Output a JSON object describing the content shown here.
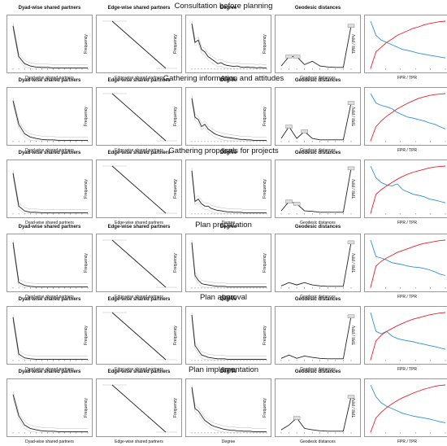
{
  "panel_titles": {
    "dsp": "Dyad-wise shared partners",
    "esp": "Edge-wise shared partners",
    "deg": "Degree",
    "geo": "Geodesic distances"
  },
  "axis_labels": {
    "dsp_x": "Dyad-wise shared partners",
    "esp_x": "Edge-wise shared partners",
    "deg_x": "Degree",
    "geo_x": "Geodesic distances",
    "roc_x": "FPR / TPR",
    "frequency": "Frequency",
    "roc_y": "TPR / PPV"
  },
  "colors": {
    "line": "#222222",
    "band": "#bbbbbb",
    "roc": "#e8202a",
    "pr": "#2b8fd6"
  },
  "chart_data": [
    {
      "type": "line",
      "title": "Consultation before planning",
      "dsp": [
        0.9,
        0.25,
        0.1,
        0.05,
        0.03,
        0.02,
        0.02,
        0.01,
        0.01,
        0.01,
        0.01,
        0.01,
        0.01,
        0.01
      ],
      "esp": [
        1.0,
        0.0
      ],
      "degree": [
        0.95,
        0.55,
        0.6,
        0.4,
        0.35,
        0.25,
        0.2,
        0.15,
        0.1,
        0.12,
        0.08,
        0.06,
        0.05,
        0.04,
        0.05,
        0.03,
        0.02,
        0.03,
        0.02,
        0.02,
        0.01,
        0.02,
        0.01,
        0.01
      ],
      "geodesic": [
        0.05,
        0.25,
        0.25,
        0.08,
        0.15,
        0.05,
        0.03,
        0.02,
        0.02,
        0.9
      ],
      "roc": [
        0.0,
        0.35,
        0.45,
        0.55,
        0.62,
        0.7,
        0.75,
        0.8,
        0.85,
        0.88,
        0.92,
        0.95,
        0.97,
        0.99,
        1.0
      ],
      "pr": [
        1.0,
        0.7,
        0.6,
        0.55,
        0.5,
        0.45,
        0.4,
        0.38,
        0.35,
        0.32,
        0.3,
        0.28,
        0.26,
        0.24,
        0.22
      ]
    },
    {
      "type": "line",
      "title": "Gathering information and attitudes",
      "dsp": [
        0.85,
        0.35,
        0.15,
        0.08,
        0.05,
        0.03,
        0.02,
        0.02,
        0.01,
        0.01,
        0.01,
        0.01,
        0.01,
        0.01
      ],
      "esp": [
        1.0,
        0.0
      ],
      "degree": [
        0.9,
        0.5,
        0.45,
        0.3,
        0.35,
        0.25,
        0.2,
        0.15,
        0.12,
        0.1,
        0.08,
        0.07,
        0.06,
        0.05,
        0.04,
        0.03,
        0.03,
        0.02,
        0.02,
        0.01,
        0.01,
        0.01,
        0.01,
        0.01
      ],
      "geodesic": [
        0.05,
        0.3,
        0.05,
        0.2,
        0.05,
        0.02,
        0.02,
        0.02,
        0.02,
        0.8
      ],
      "roc": [
        0.0,
        0.3,
        0.42,
        0.52,
        0.6,
        0.68,
        0.74,
        0.8,
        0.85,
        0.9,
        0.93,
        0.96,
        0.98,
        0.99,
        1.0
      ],
      "pr": [
        1.0,
        0.8,
        0.75,
        0.72,
        0.68,
        0.6,
        0.55,
        0.5,
        0.48,
        0.45,
        0.42,
        0.38,
        0.35,
        0.3,
        0.25
      ]
    },
    {
      "type": "line",
      "title": "Gathering proposals for projects",
      "dsp": [
        0.85,
        0.15,
        0.05,
        0.02,
        0.02,
        0.01,
        0.01,
        0.01,
        0.01,
        0.01,
        0.01,
        0.01,
        0.01,
        0.01
      ],
      "esp": [
        1.0,
        0.0
      ],
      "degree": [
        0.9,
        0.25,
        0.3,
        0.2,
        0.15,
        0.15,
        0.1,
        0.08,
        0.06,
        0.05,
        0.04,
        0.03,
        0.03,
        0.02,
        0.02,
        0.02,
        0.01,
        0.01,
        0.01,
        0.01,
        0.01,
        0.01,
        0.01,
        0.01
      ],
      "geodesic": [
        0.05,
        0.25,
        0.2,
        0.05,
        0.04,
        0.02,
        0.02,
        0.02,
        0.02,
        0.95
      ],
      "roc": [
        0.0,
        0.4,
        0.5,
        0.58,
        0.65,
        0.72,
        0.78,
        0.83,
        0.87,
        0.9,
        0.93,
        0.96,
        0.98,
        0.99,
        1.0
      ],
      "pr": [
        1.0,
        0.75,
        0.65,
        0.6,
        0.58,
        0.62,
        0.5,
        0.45,
        0.4,
        0.38,
        0.35,
        0.3,
        0.28,
        0.25,
        0.22
      ]
    },
    {
      "type": "line",
      "title": "Plan preparation",
      "dsp": [
        0.95,
        0.1,
        0.04,
        0.02,
        0.01,
        0.01,
        0.01,
        0.01,
        0.01,
        0.01,
        0.01,
        0.01,
        0.01,
        0.01
      ],
      "esp": [
        1.0,
        0.0
      ],
      "degree": [
        0.95,
        0.25,
        0.15,
        0.08,
        0.06,
        0.05,
        0.04,
        0.03,
        0.02,
        0.02,
        0.02,
        0.01,
        0.01,
        0.01,
        0.01,
        0.01,
        0.01,
        0.01,
        0.01,
        0.01,
        0.01,
        0.01,
        0.01,
        0.01
      ],
      "geodesic": [
        0.03,
        0.1,
        0.05,
        0.1,
        0.05,
        0.03,
        0.02,
        0.02,
        0.02,
        0.95
      ],
      "roc": [
        0.0,
        0.45,
        0.55,
        0.62,
        0.68,
        0.74,
        0.78,
        0.82,
        0.86,
        0.9,
        0.93,
        0.95,
        0.97,
        0.99,
        1.0
      ],
      "pr": [
        1.0,
        0.65,
        0.62,
        0.58,
        0.52,
        0.5,
        0.48,
        0.45,
        0.43,
        0.42,
        0.4,
        0.37,
        0.33,
        0.28,
        0.25
      ]
    },
    {
      "type": "line",
      "title": "Plan approval",
      "dsp": [
        0.9,
        0.12,
        0.04,
        0.02,
        0.01,
        0.01,
        0.01,
        0.01,
        0.01,
        0.01,
        0.01,
        0.01,
        0.01,
        0.01
      ],
      "esp": [
        1.0,
        0.0
      ],
      "degree": [
        0.95,
        0.3,
        0.2,
        0.1,
        0.08,
        0.05,
        0.04,
        0.03,
        0.02,
        0.02,
        0.02,
        0.01,
        0.01,
        0.01,
        0.01,
        0.01,
        0.01,
        0.01,
        0.01,
        0.01,
        0.01,
        0.01,
        0.01,
        0.01
      ],
      "geodesic": [
        0.03,
        0.1,
        0.03,
        0.08,
        0.05,
        0.03,
        0.02,
        0.02,
        0.02,
        0.92
      ],
      "roc": [
        0.0,
        0.4,
        0.52,
        0.6,
        0.66,
        0.72,
        0.77,
        0.82,
        0.86,
        0.89,
        0.92,
        0.95,
        0.97,
        0.99,
        1.0
      ],
      "pr": [
        1.0,
        0.6,
        0.55,
        0.6,
        0.5,
        0.45,
        0.42,
        0.4,
        0.38,
        0.35,
        0.33,
        0.3,
        0.28,
        0.25,
        0.22
      ]
    },
    {
      "type": "line",
      "title": "Plan implementation",
      "dsp": [
        0.8,
        0.35,
        0.15,
        0.08,
        0.05,
        0.03,
        0.02,
        0.02,
        0.01,
        0.01,
        0.01,
        0.01,
        0.01,
        0.01
      ],
      "esp": [
        1.0,
        0.0
      ],
      "degree": [
        0.95,
        0.5,
        0.45,
        0.35,
        0.25,
        0.2,
        0.15,
        0.12,
        0.1,
        0.08,
        0.06,
        0.05,
        0.04,
        0.04,
        0.03,
        0.03,
        0.02,
        0.02,
        0.02,
        0.01,
        0.01,
        0.01,
        0.01,
        0.01
      ],
      "geodesic": [
        0.05,
        0.15,
        0.3,
        0.08,
        0.05,
        0.03,
        0.02,
        0.02,
        0.02,
        0.75
      ],
      "roc": [
        0.0,
        0.3,
        0.42,
        0.52,
        0.6,
        0.67,
        0.73,
        0.78,
        0.83,
        0.87,
        0.91,
        0.94,
        0.97,
        0.99,
        1.0
      ],
      "pr": [
        1.0,
        0.75,
        0.62,
        0.55,
        0.5,
        0.45,
        0.4,
        0.37,
        0.34,
        0.32,
        0.3,
        0.28,
        0.25,
        0.22,
        0.2
      ]
    }
  ]
}
